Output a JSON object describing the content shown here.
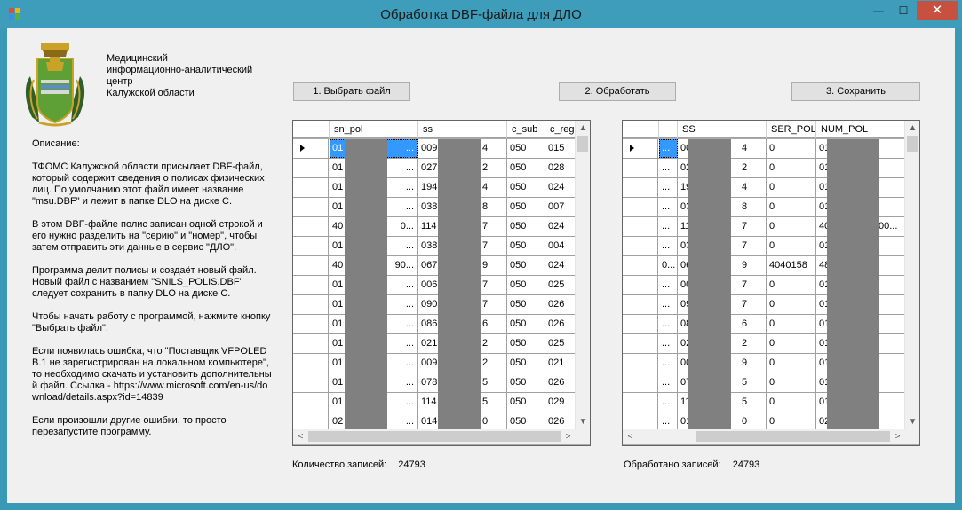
{
  "window": {
    "title": "Обработка DBF-файла для ДЛО",
    "min_glyph": "—",
    "max_glyph": "☐",
    "close_glyph": "✕"
  },
  "org": {
    "lines": [
      "Медицинский",
      "информационно-аналитический",
      "центр",
      "Калужской области"
    ]
  },
  "description": {
    "heading": "Описание:",
    "paragraphs": [
      "ТФОМС Калужской области присылает DBF-файл, который содержит сведения о полисах физических лиц. По умолчанию этот файл имеет название \"msu.DBF\" и лежит в папке DLO на диске С.",
      "В этом DBF-файле полис записан одной строкой и его нужно разделить на \"серию\" и \"номер\", чтобы затем отправить эти данные в сервис \"ДЛО\".",
      "Программа делит полисы и создаёт новый файл. Новый файл с названием \"SNILS_POLIS.DBF\" следует сохранить в папку DLO на диске С.",
      "Чтобы начать работу с программой, нажмите кнопку \"Выбрать файл\".",
      "Если появилась ошибка, что \"Поставщик VFPOLEDB.1 не зарегистрирован на локальном компьютере\", то необходимо скачать и установить дополнительный файл. Ссылка - https://www.microsoft.com/en-us/download/details.aspx?id=14839",
      "Если произошли другие ошибки, то просто перезапустите программу."
    ]
  },
  "buttons": {
    "select": "1. Выбрать файл",
    "process": "2. Обработать",
    "save": "3. Сохранить"
  },
  "left_grid": {
    "headers": [
      "sn_pol",
      "ss",
      "c_sub",
      "c_reg"
    ],
    "rows": [
      {
        "a": "01",
        "a2": "...",
        "b": "009",
        "b2": "4",
        "c": "050",
        "d": "015"
      },
      {
        "a": "01",
        "a2": "...",
        "b": "027",
        "b2": "2",
        "c": "050",
        "d": "028"
      },
      {
        "a": "01",
        "a2": "...",
        "b": "194",
        "b2": "4",
        "c": "050",
        "d": "024"
      },
      {
        "a": "01",
        "a2": "...",
        "b": "038",
        "b2": "8",
        "c": "050",
        "d": "007"
      },
      {
        "a": "40",
        "a2": "0...",
        "b": "114",
        "b2": "7",
        "c": "050",
        "d": "024"
      },
      {
        "a": "01",
        "a2": "...",
        "b": "038",
        "b2": "7",
        "c": "050",
        "d": "004"
      },
      {
        "a": "40",
        "a2": "90...",
        "b": "067",
        "b2": "9",
        "c": "050",
        "d": "024"
      },
      {
        "a": "01",
        "a2": "...",
        "b": "006",
        "b2": "7",
        "c": "050",
        "d": "025"
      },
      {
        "a": "01",
        "a2": "...",
        "b": "090",
        "b2": "7",
        "c": "050",
        "d": "026"
      },
      {
        "a": "01",
        "a2": "...",
        "b": "086",
        "b2": "6",
        "c": "050",
        "d": "026"
      },
      {
        "a": "01",
        "a2": "...",
        "b": "021",
        "b2": "2",
        "c": "050",
        "d": "025"
      },
      {
        "a": "01",
        "a2": "...",
        "b": "009",
        "b2": "2",
        "c": "050",
        "d": "021"
      },
      {
        "a": "01",
        "a2": "...",
        "b": "078",
        "b2": "5",
        "c": "050",
        "d": "026"
      },
      {
        "a": "01",
        "a2": "...",
        "b": "114",
        "b2": "5",
        "c": "050",
        "d": "029"
      },
      {
        "a": "02",
        "a2": "...",
        "b": "014",
        "b2": "0",
        "c": "050",
        "d": "026"
      }
    ]
  },
  "right_grid": {
    "headers": [
      "SS",
      "SER_POL",
      "NUM_POL"
    ],
    "rows": [
      {
        "x": "...",
        "a": "00",
        "a2": "4",
        "s": "0",
        "n": "01",
        "n2": ""
      },
      {
        "x": "...",
        "a": "02",
        "a2": "2",
        "s": "0",
        "n": "01",
        "n2": ""
      },
      {
        "x": "...",
        "a": "19",
        "a2": "4",
        "s": "0",
        "n": "01",
        "n2": ""
      },
      {
        "x": "...",
        "a": "03",
        "a2": "8",
        "s": "0",
        "n": "01",
        "n2": ""
      },
      {
        "x": "...",
        "a": "11",
        "a2": "7",
        "s": "0",
        "n": "40",
        "n2": "00..."
      },
      {
        "x": "...",
        "a": "03",
        "a2": "7",
        "s": "0",
        "n": "01",
        "n2": ""
      },
      {
        "x": "0...",
        "a": "06",
        "a2": "9",
        "s": "4040158",
        "n": "48",
        "n2": ""
      },
      {
        "x": "...",
        "a": "00",
        "a2": "7",
        "s": "0",
        "n": "01",
        "n2": ""
      },
      {
        "x": "...",
        "a": "09",
        "a2": "7",
        "s": "0",
        "n": "01",
        "n2": ""
      },
      {
        "x": "...",
        "a": "08",
        "a2": "6",
        "s": "0",
        "n": "01",
        "n2": ""
      },
      {
        "x": "...",
        "a": "02",
        "a2": "2",
        "s": "0",
        "n": "01",
        "n2": ""
      },
      {
        "x": "...",
        "a": "00",
        "a2": "9",
        "s": "0",
        "n": "01",
        "n2": ""
      },
      {
        "x": "...",
        "a": "07",
        "a2": "5",
        "s": "0",
        "n": "01",
        "n2": ""
      },
      {
        "x": "...",
        "a": "11",
        "a2": "5",
        "s": "0",
        "n": "01",
        "n2": ""
      },
      {
        "x": "...",
        "a": "01",
        "a2": "0",
        "s": "0",
        "n": "02",
        "n2": ""
      }
    ]
  },
  "status": {
    "records_label": "Количество записей:",
    "records_value": "24793",
    "processed_label": "Обработано записей:",
    "processed_value": "24793"
  },
  "icons": {
    "scroll_up": "▲",
    "scroll_down": "▼",
    "scroll_left": "<",
    "scroll_right": ">",
    "hscroll_left": "‹"
  },
  "colors": {
    "titlebar": "#3d9dba",
    "selection": "#3399ff",
    "close": "#c7503f",
    "mask": "#808080"
  }
}
